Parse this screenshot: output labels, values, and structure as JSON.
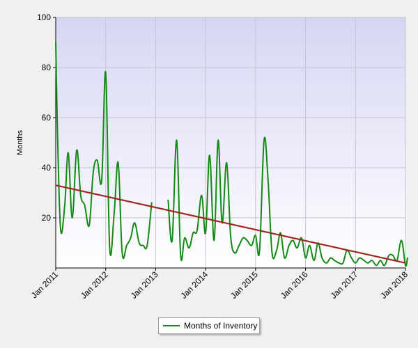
{
  "chart_data": {
    "type": "line",
    "title": "",
    "xlabel": "",
    "ylabel": "Months",
    "ylim": [
      0,
      100
    ],
    "yticks": [
      20,
      40,
      60,
      80,
      100
    ],
    "xlim": [
      2011.0,
      2018.0
    ],
    "xticks": [
      {
        "x": 2011,
        "label": "Jan 2011"
      },
      {
        "x": 2012,
        "label": "Jan 2012"
      },
      {
        "x": 2013,
        "label": "Jan 2013"
      },
      {
        "x": 2014,
        "label": "Jan 2014"
      },
      {
        "x": 2015,
        "label": "Jan 2015"
      },
      {
        "x": 2016,
        "label": "Jan 2016"
      },
      {
        "x": 2017,
        "label": "Jan 2017"
      },
      {
        "x": 2018,
        "label": "Jan 2018"
      }
    ],
    "grid": true,
    "legend": "bottom-center",
    "series": [
      {
        "name": "Months of Inventory",
        "color": "#138a13",
        "segments": [
          [
            [
              2011.0,
              90
            ],
            [
              2011.04,
              50
            ],
            [
              2011.1,
              15
            ],
            [
              2011.18,
              25
            ],
            [
              2011.25,
              46
            ],
            [
              2011.33,
              20
            ],
            [
              2011.42,
              47
            ],
            [
              2011.5,
              29
            ],
            [
              2011.58,
              25
            ],
            [
              2011.67,
              17
            ],
            [
              2011.75,
              38
            ],
            [
              2011.83,
              43
            ],
            [
              2011.92,
              35
            ],
            [
              2012.0,
              78
            ],
            [
              2012.08,
              8
            ],
            [
              2012.17,
              22
            ],
            [
              2012.25,
              42
            ],
            [
              2012.33,
              6
            ],
            [
              2012.42,
              9
            ],
            [
              2012.5,
              12
            ],
            [
              2012.58,
              18
            ],
            [
              2012.67,
              10
            ],
            [
              2012.75,
              9
            ],
            [
              2012.83,
              9
            ],
            [
              2012.92,
              26
            ]
          ],
          [
            [
              2013.25,
              27
            ],
            [
              2013.33,
              11
            ],
            [
              2013.42,
              51
            ],
            [
              2013.5,
              5
            ],
            [
              2013.58,
              12
            ],
            [
              2013.67,
              8
            ],
            [
              2013.75,
              14
            ],
            [
              2013.83,
              15
            ],
            [
              2013.92,
              29
            ],
            [
              2014.0,
              14
            ],
            [
              2014.08,
              45
            ],
            [
              2014.17,
              11
            ],
            [
              2014.25,
              51
            ],
            [
              2014.33,
              18
            ],
            [
              2014.42,
              42
            ],
            [
              2014.5,
              13
            ],
            [
              2014.58,
              6
            ],
            [
              2014.67,
              9
            ],
            [
              2014.75,
              12
            ],
            [
              2014.83,
              11
            ],
            [
              2014.92,
              9
            ],
            [
              2015.0,
              13
            ],
            [
              2015.08,
              7
            ],
            [
              2015.17,
              51
            ],
            [
              2015.25,
              35
            ],
            [
              2015.33,
              6
            ],
            [
              2015.42,
              7
            ],
            [
              2015.5,
              14
            ],
            [
              2015.58,
              4
            ],
            [
              2015.67,
              9
            ],
            [
              2015.75,
              11
            ],
            [
              2015.83,
              8
            ],
            [
              2015.92,
              12
            ],
            [
              2016.0,
              4
            ],
            [
              2016.08,
              9
            ],
            [
              2016.17,
              3
            ],
            [
              2016.25,
              10
            ],
            [
              2016.33,
              4
            ],
            [
              2016.42,
              2
            ],
            [
              2016.5,
              4
            ],
            [
              2016.58,
              3
            ],
            [
              2016.67,
              2
            ],
            [
              2016.75,
              2
            ],
            [
              2016.83,
              7
            ],
            [
              2016.92,
              4
            ],
            [
              2017.0,
              2
            ],
            [
              2017.08,
              4
            ],
            [
              2017.17,
              3
            ],
            [
              2017.25,
              2
            ],
            [
              2017.33,
              3
            ],
            [
              2017.42,
              1
            ],
            [
              2017.5,
              3
            ],
            [
              2017.58,
              1
            ],
            [
              2017.67,
              5
            ],
            [
              2017.75,
              5
            ],
            [
              2017.83,
              3
            ],
            [
              2017.92,
              11
            ],
            [
              2018.0,
              1
            ],
            [
              2018.04,
              4
            ]
          ]
        ]
      }
    ],
    "trendline": {
      "color": "#a0281e",
      "points": [
        [
          2011.0,
          33
        ],
        [
          2018.0,
          2
        ]
      ]
    }
  }
}
